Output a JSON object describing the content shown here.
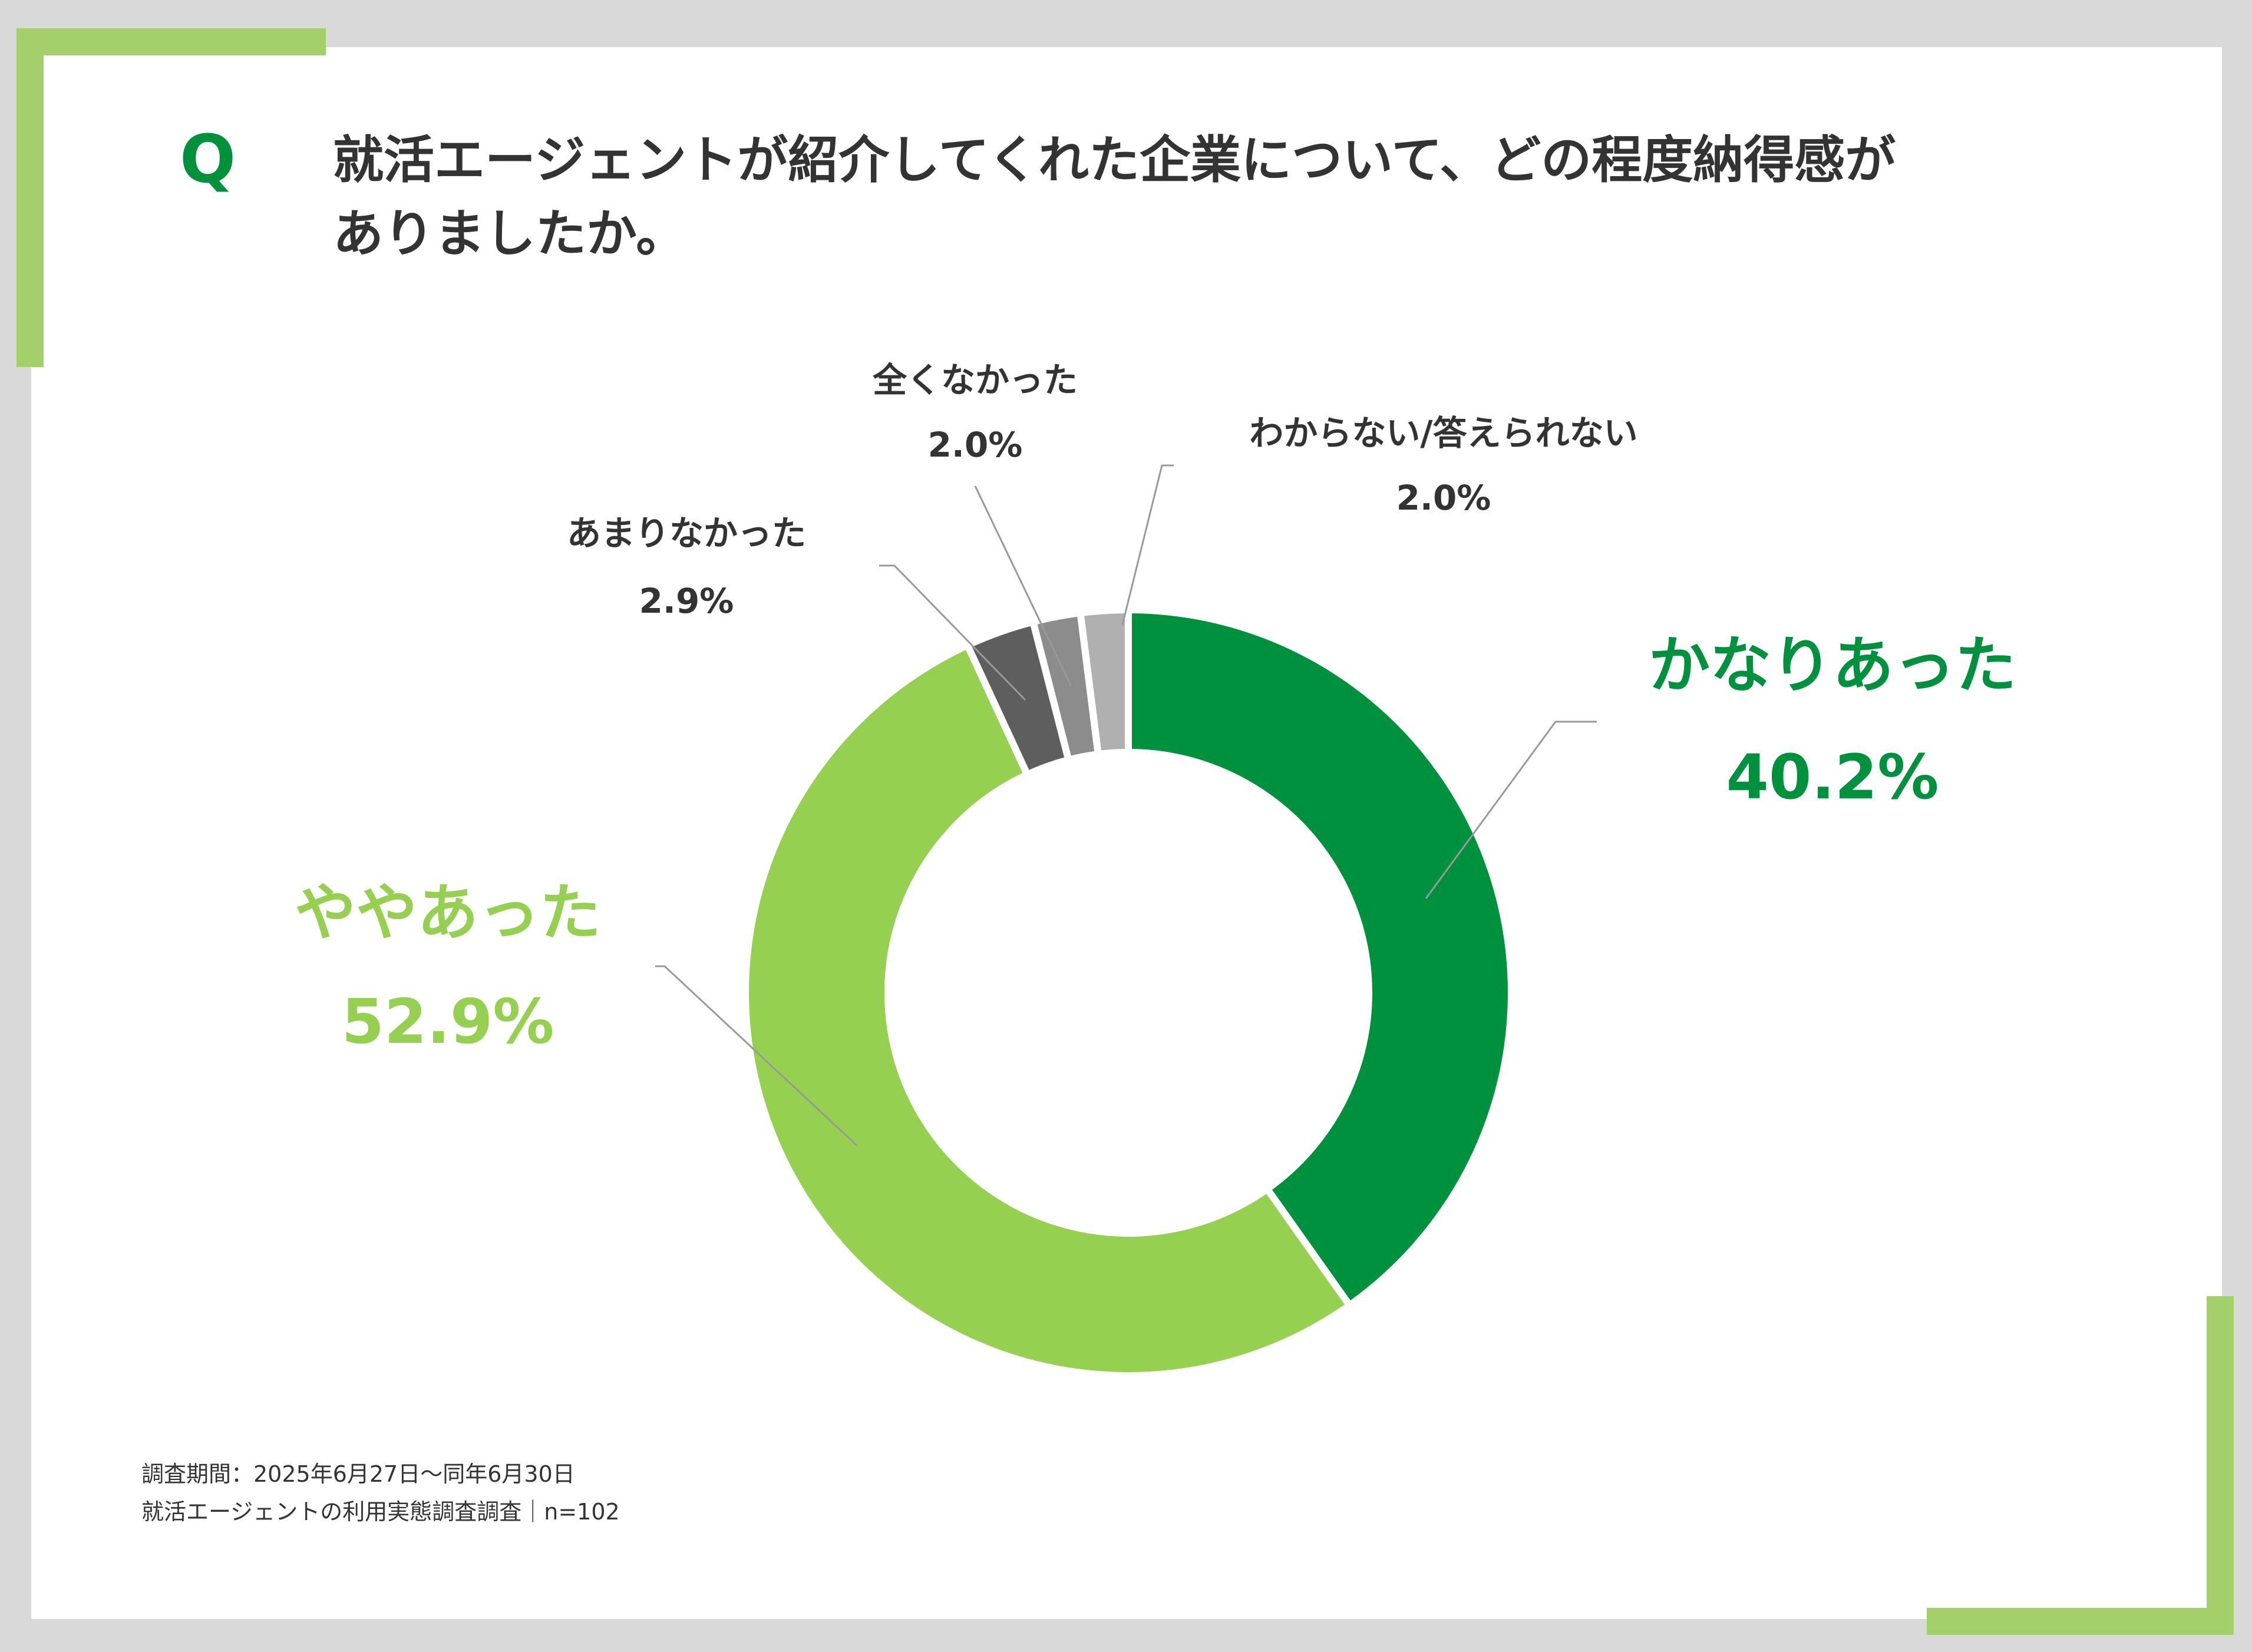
{
  "question": {
    "mark": "Q",
    "title_line1": "就活エージェントが紹介してくれた企業について、どの程度納得感が",
    "title_line2": "ありましたか。"
  },
  "footnote": {
    "line1": "調査期間：2025年6月27日～同年6月30日",
    "line2": "就活エージェントの利用実態調査調査｜n=102"
  },
  "colors": {
    "background": "#d9d9d9",
    "card": "#ffffff",
    "accent": "#a3d06b",
    "q_mark": "#00913a",
    "title_text": "#333333"
  },
  "chart_data": {
    "type": "pie",
    "donut": true,
    "categories": [
      "かなりあった",
      "ややあった",
      "あまりなかった",
      "全くなかった",
      "わからない/答えられない"
    ],
    "values": [
      40.2,
      52.9,
      2.9,
      2.0,
      2.0
    ],
    "value_labels": [
      "40.2%",
      "52.9%",
      "2.9%",
      "2.0%",
      "2.0%"
    ],
    "colors": [
      "#00913f",
      "#96d050",
      "#5e5e5e",
      "#8c8c8c",
      "#b0b0b0"
    ],
    "label_colors": [
      "#00913f",
      "#96d050",
      "#333333",
      "#333333",
      "#333333"
    ],
    "start": "top",
    "direction": "clockwise"
  }
}
